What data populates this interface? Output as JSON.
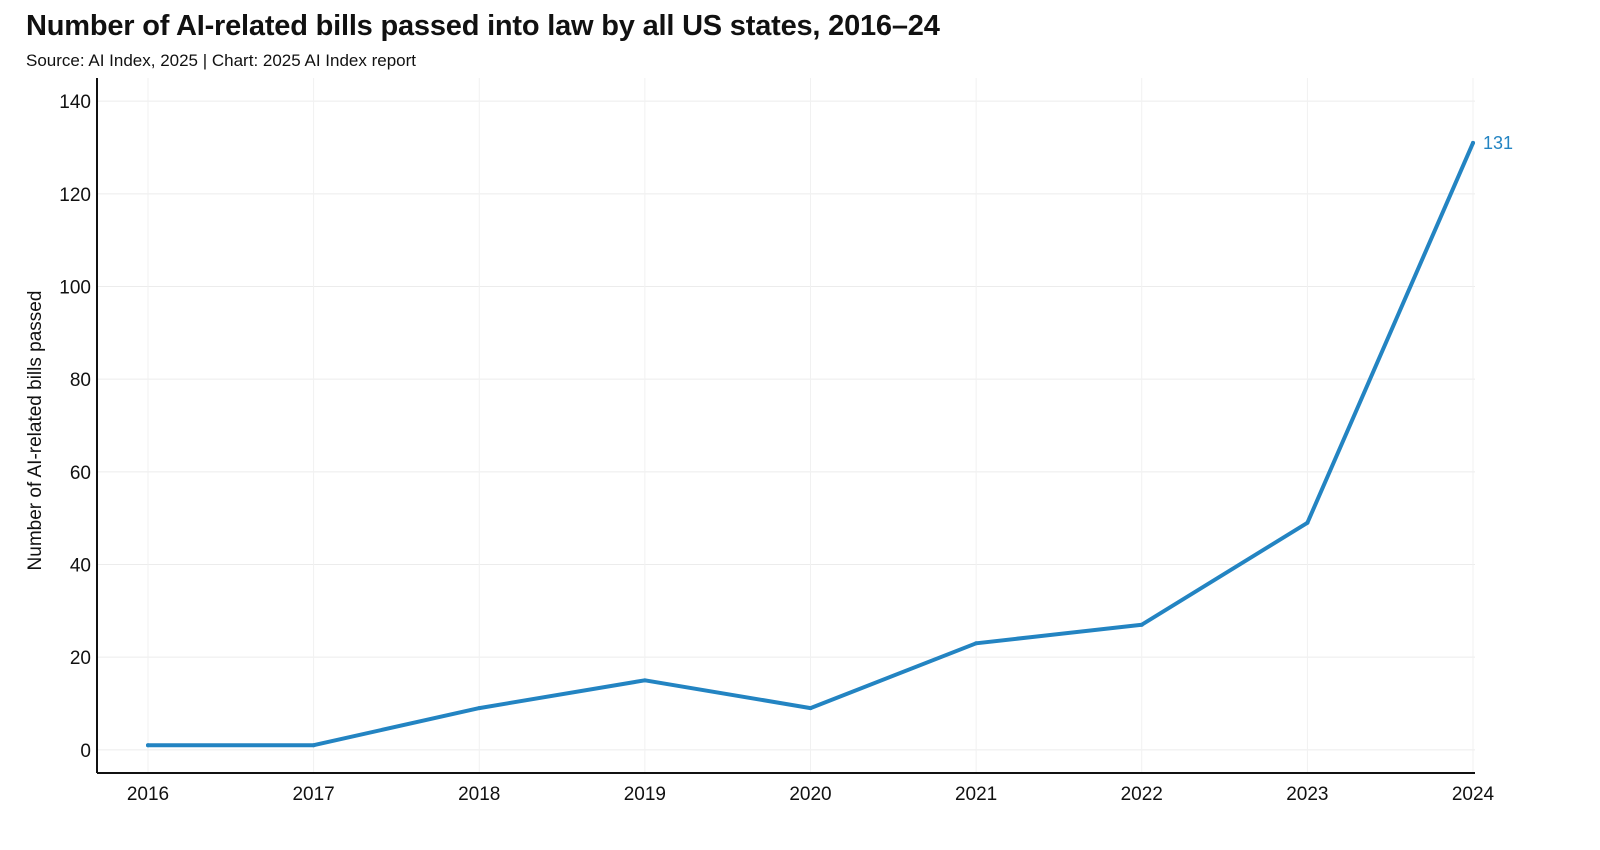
{
  "chart_data": {
    "type": "line",
    "title": "Number of AI-related bills passed into law by all US states, 2016–24",
    "subtitle": "Source: AI Index, 2025 | Chart: 2025 AI Index report",
    "xlabel": "",
    "ylabel": "Number of AI-related bills passed",
    "categories": [
      "2016",
      "2017",
      "2018",
      "2019",
      "2020",
      "2021",
      "2022",
      "2023",
      "2024"
    ],
    "series": [
      {
        "name": "AI-related bills passed",
        "values": [
          1,
          1,
          9,
          15,
          9,
          23,
          27,
          49,
          131
        ],
        "color": "#2384c2"
      }
    ],
    "yticks": [
      0,
      20,
      40,
      60,
      80,
      100,
      120,
      140
    ],
    "ylim": [
      -5,
      145
    ],
    "grid": true,
    "annotations": [
      {
        "category": "2024",
        "text": "131"
      }
    ]
  }
}
